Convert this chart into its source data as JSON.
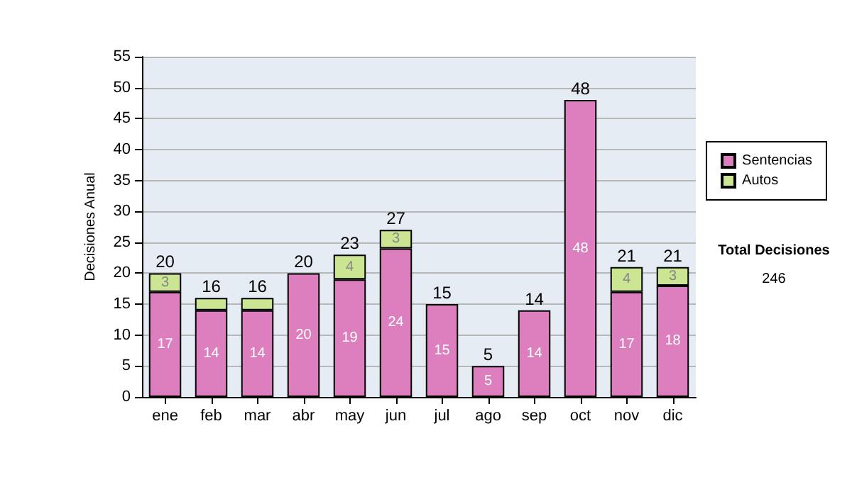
{
  "chart_data": {
    "type": "bar",
    "stacked": true,
    "ylabel": "Decisiones Anual",
    "categories": [
      "ene",
      "feb",
      "mar",
      "abr",
      "may",
      "jun",
      "jul",
      "ago",
      "sep",
      "oct",
      "nov",
      "dic"
    ],
    "series": [
      {
        "name": "Sentencias",
        "color": "#dd7fbf",
        "values": [
          17,
          14,
          14,
          20,
          19,
          24,
          15,
          5,
          14,
          48,
          17,
          18
        ],
        "value_labels": [
          "17",
          "14",
          "14",
          "20",
          "19",
          "24",
          "15",
          "5",
          "14",
          "48",
          "17",
          "18"
        ]
      },
      {
        "name": "Autos",
        "color": "#cce593",
        "values": [
          3,
          2,
          2,
          null,
          4,
          3,
          null,
          null,
          null,
          null,
          4,
          3
        ],
        "value_labels": [
          "3",
          null,
          null,
          null,
          "4",
          "3",
          null,
          null,
          null,
          null,
          "4",
          "3"
        ]
      }
    ],
    "totals": [
      "20",
      "16",
      "16",
      "20",
      "23",
      "27",
      "15",
      "5",
      "14",
      "48",
      "21",
      "21"
    ],
    "ylim": [
      0,
      55
    ],
    "yticks": [
      0,
      5,
      10,
      15,
      20,
      25,
      30,
      35,
      40,
      45,
      50,
      55
    ],
    "grid": "y",
    "legend": "right",
    "annotations": [
      "Total Decisiones",
      "246"
    ]
  }
}
